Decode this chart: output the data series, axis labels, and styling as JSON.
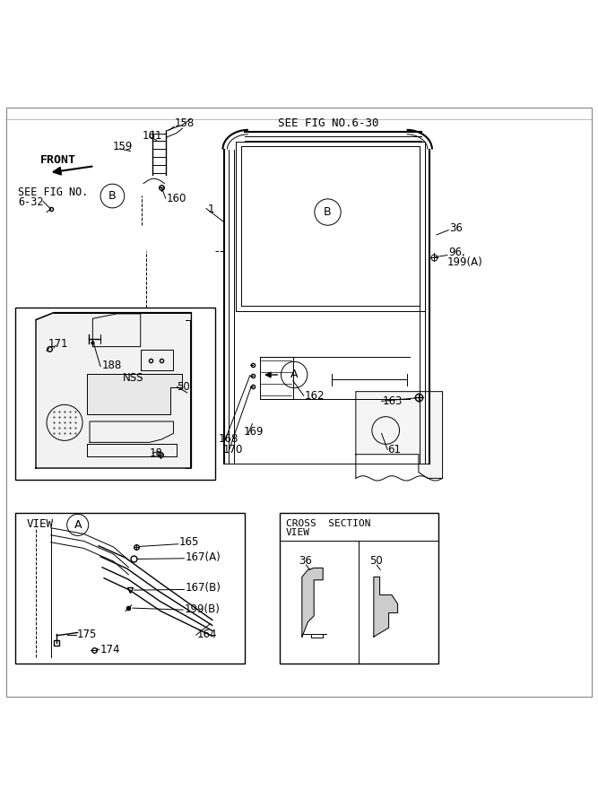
{
  "bg_color": "#ffffff",
  "line_color": "#000000",
  "labels": {
    "see_fig_630": "SEE FIG NO.6-30",
    "see_fig_632_line1": "SEE FIG NO.",
    "see_fig_632_line2": "6-32",
    "front": "FRONT",
    "num_158": "158",
    "num_161": "161",
    "num_159": "159",
    "num_160": "160",
    "num_1": "1",
    "num_36": "36",
    "num_96_199A_1": "96,",
    "num_96_199A_2": "199(A)",
    "num_171": "171",
    "num_188": "188",
    "nss": "NSS",
    "num_50_panel": "50",
    "num_18": "18",
    "num_162": "162",
    "num_163": "163",
    "num_168": "168",
    "num_169": "169",
    "num_170": "170",
    "num_61": "61",
    "view_a": "VIEW",
    "num_165": "165",
    "num_167A": "167(A)",
    "num_167B": "167(B)",
    "num_199B": "199(B)",
    "num_164": "164",
    "num_174": "174",
    "num_175": "175",
    "cross_section_1": "CROSS  SECTION",
    "cross_section_2": "VIEW",
    "cs_36": "36",
    "cs_50": "50"
  }
}
